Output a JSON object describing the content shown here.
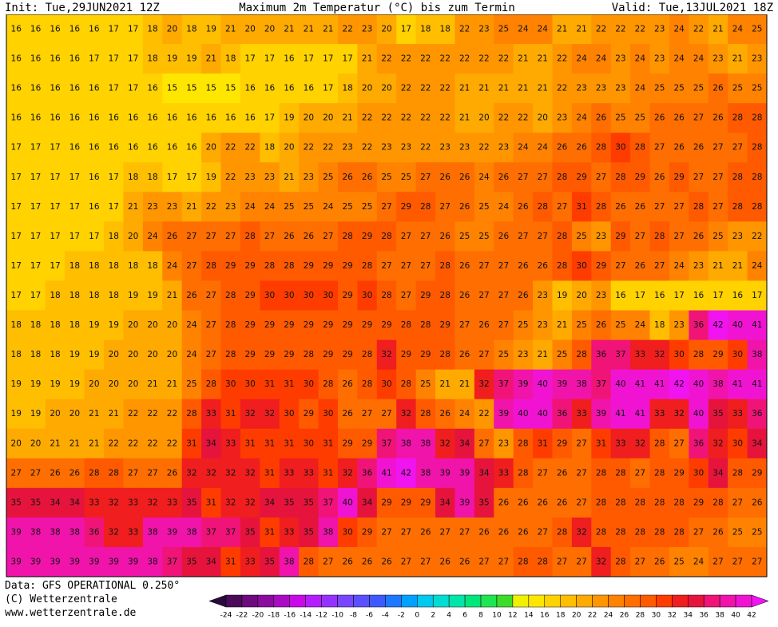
{
  "header": {
    "init": "Init: Tue,29JUN2021 12Z",
    "title": "Maximum 2m Temperatur (°C) bis zum Termin",
    "valid": "Valid: Tue,13JUL2021 18Z"
  },
  "map": {
    "type": "grid",
    "rows": [
      [
        16,
        16,
        16,
        16,
        16,
        17,
        17,
        18,
        20,
        18,
        19,
        21,
        20,
        20,
        21,
        21,
        21,
        22,
        23,
        20,
        17,
        18,
        18,
        22,
        23,
        25,
        24,
        24,
        21,
        21,
        22,
        22,
        22,
        23,
        24,
        22,
        21,
        24,
        25
      ],
      [
        16,
        16,
        16,
        16,
        17,
        17,
        17,
        18,
        19,
        19,
        21,
        18,
        17,
        17,
        16,
        17,
        17,
        17,
        21,
        22,
        22,
        22,
        22,
        22,
        22,
        22,
        21,
        21,
        22,
        24,
        24,
        23,
        24,
        23,
        24,
        24,
        23,
        21,
        23
      ],
      [
        16,
        16,
        16,
        16,
        16,
        17,
        17,
        16,
        15,
        15,
        15,
        15,
        16,
        16,
        16,
        16,
        17,
        18,
        20,
        20,
        22,
        22,
        22,
        21,
        21,
        21,
        21,
        21,
        22,
        23,
        23,
        23,
        24,
        25,
        25,
        25,
        26,
        25,
        25
      ],
      [
        16,
        16,
        16,
        16,
        16,
        16,
        16,
        16,
        16,
        16,
        16,
        16,
        16,
        17,
        19,
        20,
        20,
        21,
        22,
        22,
        22,
        22,
        22,
        21,
        20,
        22,
        22,
        20,
        23,
        24,
        26,
        25,
        25,
        26,
        26,
        27,
        26,
        28,
        28
      ],
      [
        17,
        17,
        17,
        16,
        16,
        16,
        16,
        16,
        16,
        16,
        20,
        22,
        22,
        18,
        20,
        22,
        22,
        23,
        22,
        23,
        23,
        22,
        23,
        23,
        22,
        23,
        24,
        24,
        26,
        26,
        28,
        30,
        28,
        27,
        26,
        26,
        27,
        27,
        28
      ],
      [
        17,
        17,
        17,
        17,
        16,
        17,
        18,
        18,
        17,
        17,
        19,
        22,
        23,
        23,
        21,
        23,
        25,
        26,
        26,
        25,
        25,
        27,
        26,
        26,
        24,
        26,
        27,
        27,
        28,
        29,
        27,
        28,
        29,
        26,
        29,
        27,
        27,
        28,
        28
      ],
      [
        17,
        17,
        17,
        17,
        16,
        17,
        21,
        23,
        23,
        21,
        22,
        23,
        24,
        24,
        25,
        25,
        24,
        25,
        25,
        27,
        29,
        28,
        27,
        26,
        25,
        24,
        26,
        28,
        27,
        31,
        28,
        26,
        26,
        27,
        27,
        28,
        27,
        28,
        28
      ],
      [
        17,
        17,
        17,
        17,
        17,
        18,
        20,
        24,
        26,
        27,
        27,
        27,
        28,
        27,
        26,
        26,
        27,
        28,
        29,
        28,
        27,
        27,
        26,
        25,
        25,
        26,
        27,
        27,
        28,
        25,
        23,
        29,
        27,
        28,
        27,
        26,
        25,
        23,
        22
      ],
      [
        17,
        17,
        17,
        18,
        18,
        18,
        18,
        18,
        24,
        27,
        28,
        29,
        29,
        28,
        28,
        29,
        29,
        29,
        28,
        27,
        27,
        27,
        28,
        26,
        27,
        27,
        26,
        26,
        28,
        30,
        29,
        27,
        26,
        27,
        24,
        23,
        21,
        21,
        24
      ],
      [
        17,
        17,
        18,
        18,
        18,
        18,
        19,
        19,
        21,
        26,
        27,
        28,
        29,
        30,
        30,
        30,
        30,
        29,
        30,
        28,
        27,
        29,
        28,
        26,
        27,
        27,
        26,
        23,
        19,
        20,
        23,
        16,
        17,
        16,
        17,
        16,
        17,
        16,
        17
      ],
      [
        18,
        18,
        18,
        18,
        19,
        19,
        20,
        20,
        20,
        24,
        27,
        28,
        29,
        29,
        29,
        29,
        29,
        29,
        29,
        29,
        28,
        28,
        29,
        27,
        26,
        27,
        25,
        23,
        21,
        25,
        26,
        25,
        24,
        18,
        23,
        36,
        42,
        40,
        41
      ],
      [
        18,
        18,
        18,
        19,
        19,
        20,
        20,
        20,
        20,
        24,
        27,
        28,
        29,
        29,
        29,
        28,
        29,
        29,
        28,
        32,
        29,
        29,
        28,
        26,
        27,
        25,
        23,
        21,
        25,
        28,
        36,
        37,
        33,
        32,
        30,
        28,
        29,
        30,
        38
      ],
      [
        19,
        19,
        19,
        19,
        20,
        20,
        20,
        21,
        21,
        25,
        28,
        30,
        30,
        31,
        31,
        30,
        28,
        26,
        28,
        30,
        28,
        25,
        21,
        21,
        32,
        37,
        39,
        40,
        39,
        38,
        37,
        40,
        41,
        41,
        42,
        40,
        38,
        41,
        41
      ],
      [
        19,
        19,
        20,
        20,
        21,
        21,
        22,
        22,
        22,
        28,
        33,
        31,
        32,
        32,
        30,
        29,
        30,
        26,
        27,
        27,
        32,
        28,
        26,
        24,
        22,
        39,
        40,
        40,
        36,
        33,
        39,
        41,
        41,
        33,
        32,
        40,
        35,
        33,
        36
      ],
      [
        20,
        20,
        21,
        21,
        21,
        22,
        22,
        22,
        22,
        31,
        34,
        33,
        31,
        31,
        31,
        30,
        31,
        29,
        29,
        37,
        38,
        38,
        32,
        34,
        27,
        23,
        28,
        31,
        29,
        27,
        31,
        33,
        32,
        28,
        27,
        36,
        32,
        30,
        34
      ],
      [
        27,
        27,
        26,
        26,
        28,
        28,
        27,
        27,
        26,
        32,
        32,
        32,
        32,
        31,
        33,
        33,
        31,
        32,
        36,
        41,
        42,
        38,
        39,
        39,
        34,
        33,
        28,
        27,
        26,
        27,
        28,
        28,
        27,
        28,
        29,
        30,
        34,
        28,
        29
      ],
      [
        35,
        35,
        34,
        34,
        33,
        32,
        33,
        32,
        33,
        35,
        31,
        32,
        32,
        34,
        35,
        35,
        37,
        40,
        34,
        29,
        29,
        29,
        34,
        39,
        35,
        26,
        26,
        26,
        26,
        27,
        28,
        28,
        28,
        28,
        28,
        29,
        28,
        27,
        26
      ],
      [
        39,
        38,
        38,
        38,
        36,
        32,
        33,
        38,
        39,
        38,
        37,
        37,
        35,
        31,
        33,
        35,
        38,
        30,
        29,
        27,
        27,
        26,
        27,
        27,
        26,
        26,
        26,
        27,
        28,
        32,
        28,
        28,
        28,
        28,
        28,
        27,
        26,
        25,
        25
      ],
      [
        39,
        39,
        39,
        39,
        39,
        39,
        39,
        38,
        37,
        35,
        34,
        31,
        33,
        35,
        38,
        28,
        27,
        26,
        26,
        26,
        27,
        27,
        26,
        26,
        27,
        27,
        28,
        28,
        27,
        27,
        32,
        28,
        27,
        26,
        25,
        24,
        27,
        27,
        27
      ]
    ]
  },
  "colorbar": {
    "ticks": [
      -24,
      -22,
      -20,
      -18,
      -16,
      -14,
      -12,
      -10,
      -8,
      -6,
      -4,
      -2,
      0,
      2,
      4,
      6,
      8,
      10,
      12,
      14,
      16,
      18,
      20,
      22,
      24,
      26,
      28,
      30,
      32,
      34,
      36,
      38,
      40,
      42
    ],
    "colors": [
      "#2a0a3c",
      "#4b0a5a",
      "#6e0a7d",
      "#8c0aa0",
      "#aa0ac3",
      "#c80ae6",
      "#b41eff",
      "#9632ff",
      "#7846ff",
      "#5a50ff",
      "#3c5aff",
      "#1e78ff",
      "#00a0ff",
      "#00c8f0",
      "#00dcd2",
      "#00e6aa",
      "#00e678",
      "#1ee650",
      "#3cdc28",
      "#f0f000",
      "#ffe600",
      "#ffd200",
      "#ffbe00",
      "#ffaa00",
      "#ff9600",
      "#ff8200",
      "#ff6e00",
      "#ff5a00",
      "#ff3c00",
      "#f01e1e",
      "#e6143c",
      "#f01478",
      "#f014aa",
      "#f014d2",
      "#f014f0"
    ]
  },
  "footer": {
    "data": "Data: GFS OPERATIONAL 0.250°",
    "copyright": "(C) Wetterzentrale",
    "url": "www.wetterzentrale.de"
  }
}
